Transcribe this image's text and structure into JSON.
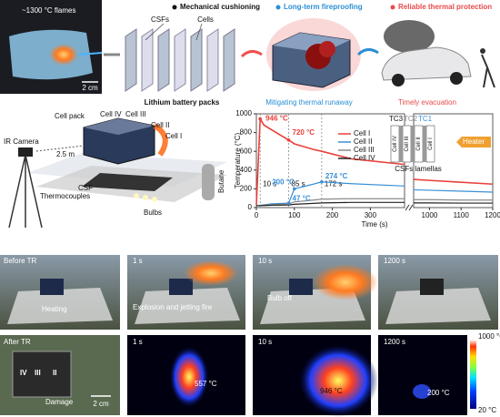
{
  "panel_a": {
    "legend": [
      {
        "label": "Mechanical cushioning",
        "color": "#111111"
      },
      {
        "label": "Long-term fireproofing",
        "color": "#2a8fd6"
      },
      {
        "label": "Reliable thermal protection",
        "color": "#e84a4a"
      }
    ],
    "flame_label": "~1300 °C flames",
    "scale": "2 cm",
    "csfs": "CSFs",
    "cells": "Cells",
    "packs": "Lithium battery packs",
    "mitigating": "Mitigating thermal runaway",
    "evacuation": "Timely evacuation"
  },
  "panel_b": {
    "cell_pack": "Cell pack",
    "cell_iv": "Cell IV",
    "cell_iii": "Cell III",
    "cell_ii": "Cell II",
    "cell_i": "Cell I",
    "camera": "IR Camera",
    "distance": "2.5 m",
    "thermocouples": "Thermocouples",
    "csf": "CSF",
    "butane": "Butane",
    "bulbs": "Bulbs"
  },
  "chart_data": {
    "type": "line",
    "x_label": "Time (s)",
    "y_label": "Temperature (°C)",
    "x": [
      0,
      10,
      20,
      40,
      85,
      100,
      150,
      172,
      250,
      390,
      950,
      1000,
      1100,
      1200
    ],
    "series": [
      {
        "name": "Cell I",
        "color": "#e8413a",
        "values": [
          25,
          946,
          880,
          830,
          720,
          680,
          620,
          600,
          520,
          460,
          300,
          290,
          270,
          250
        ]
      },
      {
        "name": "Cell II",
        "color": "#3a8fd8",
        "values": [
          20,
          25,
          30,
          40,
          47,
          200,
          250,
          274,
          255,
          230,
          190,
          185,
          175,
          165
        ]
      },
      {
        "name": "Cell III",
        "color": "#8a8a8a",
        "values": [
          20,
          22,
          25,
          30,
          40,
          60,
          80,
          90,
          95,
          95,
          85,
          85,
          80,
          80
        ]
      },
      {
        "name": "Cell IV",
        "color": "#222222",
        "values": [
          20,
          20,
          22,
          25,
          28,
          35,
          45,
          50,
          55,
          55,
          50,
          50,
          48,
          48
        ]
      }
    ],
    "xlim": [
      0,
      1200
    ],
    "x_break": [
      390,
      950
    ],
    "xticks": [
      0,
      100,
      200,
      300,
      1000,
      1100,
      1200
    ],
    "ylim": [
      0,
      1000
    ],
    "yticks": [
      0,
      200,
      400,
      600,
      800,
      1000
    ],
    "markers": [
      {
        "x": 10,
        "label": "10 s"
      },
      {
        "x": 85,
        "label": "85 s"
      },
      {
        "x": 172,
        "label": "172 s"
      }
    ],
    "annotations": [
      {
        "x": 10,
        "y": 946,
        "label": "946 °C",
        "color": "#e8413a"
      },
      {
        "x": 85,
        "y": 720,
        "label": "720 °C",
        "color": "#e8413a"
      },
      {
        "x": 85,
        "y": 47,
        "label": "47 °C",
        "color": "#3a8fd8"
      },
      {
        "x": 100,
        "y": 200,
        "label": "200 °C",
        "color": "#3a8fd8"
      },
      {
        "x": 172,
        "y": 274,
        "label": "274 °C",
        "color": "#3a8fd8"
      }
    ],
    "inset": {
      "thermocouples": [
        {
          "label": "TC3",
          "color": "#111111"
        },
        {
          "label": "TC2",
          "color": "#8a8a8a"
        },
        {
          "label": "TC1",
          "color": "#3a8fd8"
        }
      ],
      "cells": [
        "Cell IV",
        "Cell III",
        "Cell II",
        "Cell I"
      ],
      "heater": "Heater",
      "lamellas": "CSFs lamellas"
    }
  },
  "panel_d": {
    "before": "Before TR",
    "heating": "Heating",
    "t1": "1 s",
    "explosion": "Explosion and jetting fire",
    "t10": "10 s",
    "bulb_off": "Bulb off",
    "t1200": "1200 s",
    "after": "After TR",
    "after_cells": [
      "IV",
      "III",
      "II"
    ],
    "damage": "Damage",
    "scale": "2 cm",
    "ir_t1": "1 s",
    "ir_t1_temp": "557 °C",
    "ir_t10": "10 s",
    "ir_t10_temp": "946 °C",
    "ir_t1200": "1200 s",
    "ir_t1200_temp": "200 °C",
    "colorbar_max": "1000 °C",
    "colorbar_min": "20 °C"
  }
}
